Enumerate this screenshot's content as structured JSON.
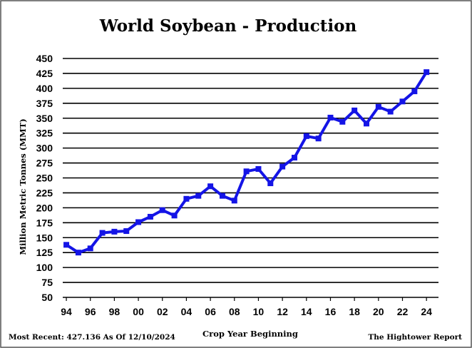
{
  "chart_data": {
    "type": "line",
    "title": "World Soybean - Production",
    "xlabel": "Crop Year Beginning",
    "ylabel": "Million Metric Tonnes (MMT)",
    "ylim": [
      50,
      450
    ],
    "yticks": [
      50,
      75,
      100,
      125,
      150,
      175,
      200,
      225,
      250,
      275,
      300,
      325,
      350,
      375,
      400,
      425,
      450
    ],
    "xtick_labels": [
      "94",
      "96",
      "98",
      "00",
      "02",
      "04",
      "06",
      "08",
      "10",
      "12",
      "14",
      "16",
      "18",
      "20",
      "22",
      "24"
    ],
    "grid": true,
    "series_color": "#1414e6",
    "series": [
      {
        "x": [
          1994,
          1995,
          1996,
          1997,
          1998,
          1999,
          2000,
          2001,
          2002,
          2003,
          2004,
          2005,
          2006,
          2007,
          2008,
          2009,
          2010,
          2011,
          2012,
          2013,
          2014,
          2015,
          2016,
          2017,
          2018,
          2019,
          2020,
          2021,
          2022,
          2023,
          2024
        ],
        "values": [
          138,
          125,
          132,
          158,
          160,
          161,
          176,
          185,
          196,
          187,
          215,
          220,
          236,
          220,
          212,
          261,
          265,
          241,
          269,
          284,
          320,
          316,
          351,
          344,
          363,
          341,
          369,
          361,
          378,
          395,
          427.136
        ]
      }
    ]
  },
  "footer": {
    "most_recent": "Most Recent: 427.136 As Of 12/10/2024",
    "source": "The Hightower Report"
  }
}
